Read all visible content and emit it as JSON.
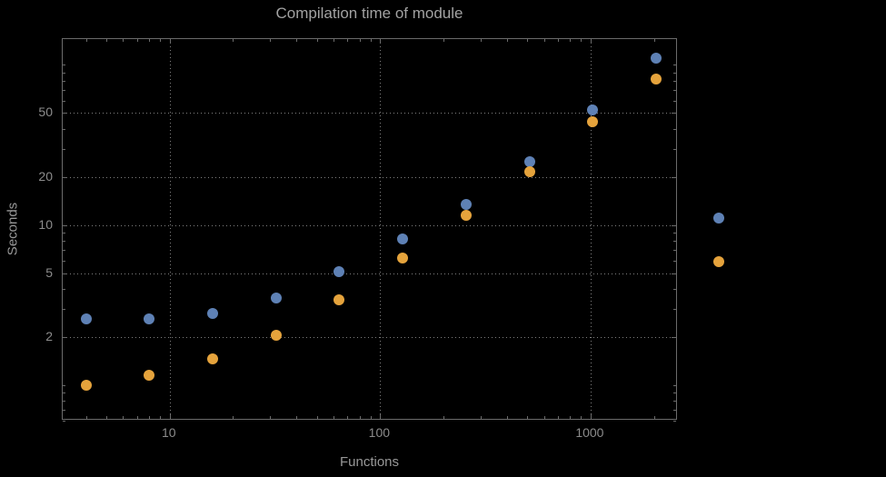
{
  "title": "Compilation time of module",
  "axes": {
    "x_label": "Functions",
    "y_label": "Seconds"
  },
  "colors": {
    "background": "#000000",
    "frame": "#6b6b6b",
    "grid": "#979797",
    "title_text": "#a2a2a2",
    "axis_text": "#989898",
    "tick_text": "#8c8c8c",
    "series_blue": "#5e81b5",
    "series_orange": "#e5a33c"
  },
  "chart_data": {
    "type": "scatter",
    "title": "Compilation time of module",
    "xlabel": "Functions",
    "ylabel": "Seconds",
    "x_scale": "log",
    "y_scale": "log",
    "grid": "dotted",
    "x_ticks": [
      10,
      100,
      1000
    ],
    "y_ticks": [
      2,
      5,
      10,
      20,
      50
    ],
    "x_range": [
      3.1,
      2600
    ],
    "y_range": [
      0.6,
      145
    ],
    "x": [
      4,
      8,
      16,
      32,
      64,
      128,
      256,
      512,
      1024,
      2048
    ],
    "series": [
      {
        "name": "series-1-blue",
        "color": "#5e81b5",
        "values": [
          2.6,
          2.6,
          2.8,
          3.5,
          5.1,
          8.2,
          13.5,
          25,
          52,
          110
        ]
      },
      {
        "name": "series-2-orange",
        "color": "#e5a33c",
        "values": [
          1.0,
          1.15,
          1.45,
          2.05,
          3.4,
          6.2,
          11.5,
          21.5,
          44,
          82
        ]
      }
    ],
    "legend": {
      "position": "right-outside",
      "labels_visible": false
    }
  }
}
